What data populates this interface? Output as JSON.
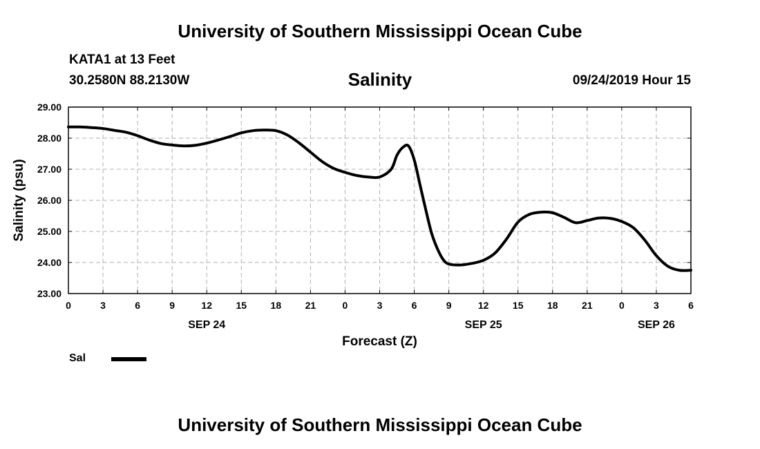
{
  "header": {
    "title": "University of Southern Mississippi Ocean Cube",
    "station": "KATA1 at 13 Feet",
    "coords": "30.2580N 88.2130W",
    "datestamp": "09/24/2019 Hour 15"
  },
  "footer": {
    "title": "University of Southern Mississippi Ocean Cube"
  },
  "legend": {
    "label": "Sal",
    "color": "#000000"
  },
  "chart_data": {
    "type": "line",
    "title": "Salinity",
    "xlabel": "Forecast (Z)",
    "ylabel": "Salinity (psu)",
    "ylim": [
      23.0,
      29.0
    ],
    "xlim": [
      0,
      54
    ],
    "grid": true,
    "x_tick_labels": [
      "0",
      "3",
      "6",
      "9",
      "12",
      "15",
      "18",
      "21",
      "0",
      "3",
      "6",
      "9",
      "12",
      "15",
      "18",
      "21",
      "0",
      "3",
      "6"
    ],
    "y_tick_labels": [
      "23.00",
      "24.00",
      "25.00",
      "26.00",
      "27.00",
      "28.00",
      "29.00"
    ],
    "date_labels": [
      {
        "label": "SEP 24",
        "tick_index": 4
      },
      {
        "label": "SEP 25",
        "tick_index": 12
      },
      {
        "label": "SEP 26",
        "tick_index": 17
      }
    ],
    "series": [
      {
        "name": "Sal",
        "color": "#000000",
        "x": [
          0,
          1,
          2,
          3,
          4,
          5,
          6,
          7,
          8,
          9,
          10,
          11,
          12,
          13,
          14,
          15,
          16,
          17,
          18,
          19,
          20,
          21,
          22,
          23,
          24,
          25,
          26,
          27,
          28,
          28.5,
          29,
          29.5,
          30,
          30.5,
          31,
          31.5,
          32,
          32.5,
          33,
          34,
          35,
          36,
          37,
          38,
          39,
          40,
          41,
          42,
          43,
          44,
          45,
          46,
          47,
          48,
          49,
          50,
          51,
          52,
          53,
          54
        ],
        "values": [
          28.36,
          28.36,
          28.34,
          28.31,
          28.25,
          28.19,
          28.08,
          27.94,
          27.83,
          27.78,
          27.75,
          27.77,
          27.84,
          27.94,
          28.05,
          28.17,
          28.24,
          28.26,
          28.24,
          28.1,
          27.85,
          27.55,
          27.25,
          27.03,
          26.9,
          26.8,
          26.75,
          26.75,
          27.0,
          27.45,
          27.7,
          27.75,
          27.3,
          26.5,
          25.7,
          24.95,
          24.45,
          24.1,
          23.95,
          23.92,
          23.97,
          24.07,
          24.3,
          24.75,
          25.3,
          25.55,
          25.62,
          25.6,
          25.45,
          25.28,
          25.35,
          25.43,
          25.42,
          25.32,
          25.12,
          24.72,
          24.22,
          23.88,
          23.75,
          23.75
        ]
      }
    ]
  }
}
